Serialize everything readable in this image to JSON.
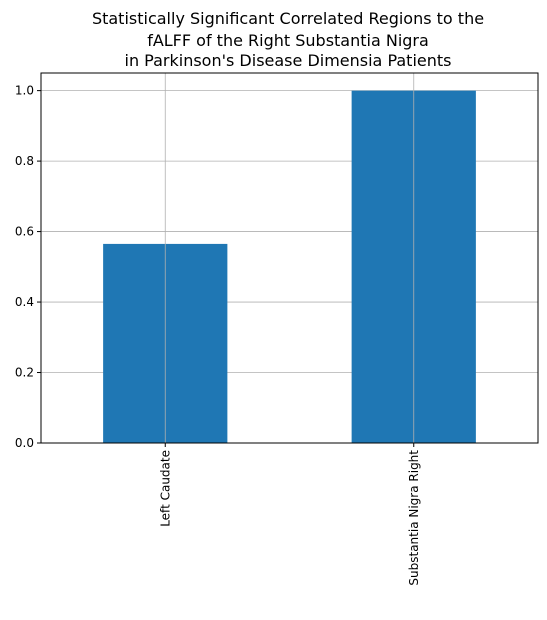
{
  "chart_data": {
    "type": "bar",
    "title_lines": [
      "Statistically Significant Correlated Regions to the",
      "fALFF of the Right Substantia Nigra",
      "in Parkinson's Disease Dimensia Patients"
    ],
    "categories": [
      "Left Caudate",
      "Substantia Nigra Right"
    ],
    "values": [
      0.565,
      1.0
    ],
    "xlabel": "",
    "ylabel": "",
    "ylim": [
      0,
      1.05
    ],
    "yticks": [
      0.0,
      0.2,
      0.4,
      0.6,
      0.8,
      1.0
    ],
    "ytick_labels": [
      "0.0",
      "0.2",
      "0.4",
      "0.6",
      "0.8",
      "1.0"
    ],
    "grid": true,
    "legend": "none",
    "bar_color": "#1f77b4",
    "grid_color": "#b0b0b0"
  }
}
